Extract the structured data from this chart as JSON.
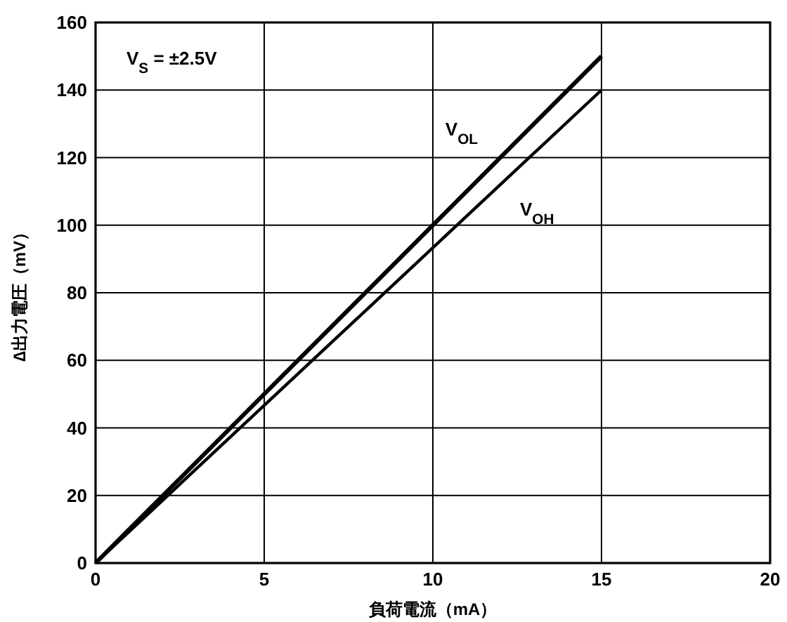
{
  "chart_data": {
    "type": "line",
    "xlabel": "負荷電流（mA）",
    "ylabel": "∆出力電圧（mV）",
    "x": [
      0,
      15
    ],
    "series": [
      {
        "name": "V$_{OL}$",
        "color": "#000000",
        "values": [
          0,
          150
        ]
      },
      {
        "name": "V$_{OH}$",
        "color": "#000000",
        "values": [
          0,
          140
        ]
      }
    ],
    "annotations": [
      "V$_{S}$ = ±2.5V"
    ],
    "xlim": [
      0,
      20
    ],
    "xticks": [
      0,
      5,
      10,
      15,
      20
    ],
    "ylim": [
      0,
      160
    ],
    "yticks": [
      0,
      20,
      40,
      60,
      80,
      100,
      120,
      140,
      160
    ],
    "grid": true,
    "marker": "none",
    "line_style": "solid"
  }
}
